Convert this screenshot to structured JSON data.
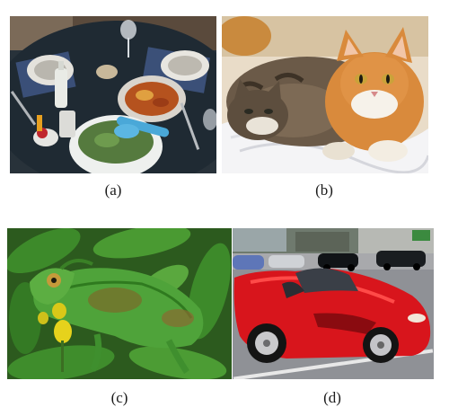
{
  "figure": {
    "panels": [
      {
        "caption": "(a)",
        "scene": "dinner-table-photo"
      },
      {
        "caption": "(b)",
        "scene": "two-cats-photo"
      },
      {
        "caption": "(c)",
        "scene": "chameleon-photo"
      },
      {
        "caption": "(d)",
        "scene": "red-sports-car-photo"
      }
    ]
  },
  "colors": {
    "table_dark": "#1f2a33",
    "salad_bowl": "#eef0ee",
    "cat_orange": "#d98a3c",
    "cat_tabby": "#6b5a48",
    "leaf_green": "#3d8a2a",
    "chameleon_green": "#4fa33a",
    "car_red": "#d8151c",
    "road_gray": "#8f9196"
  }
}
